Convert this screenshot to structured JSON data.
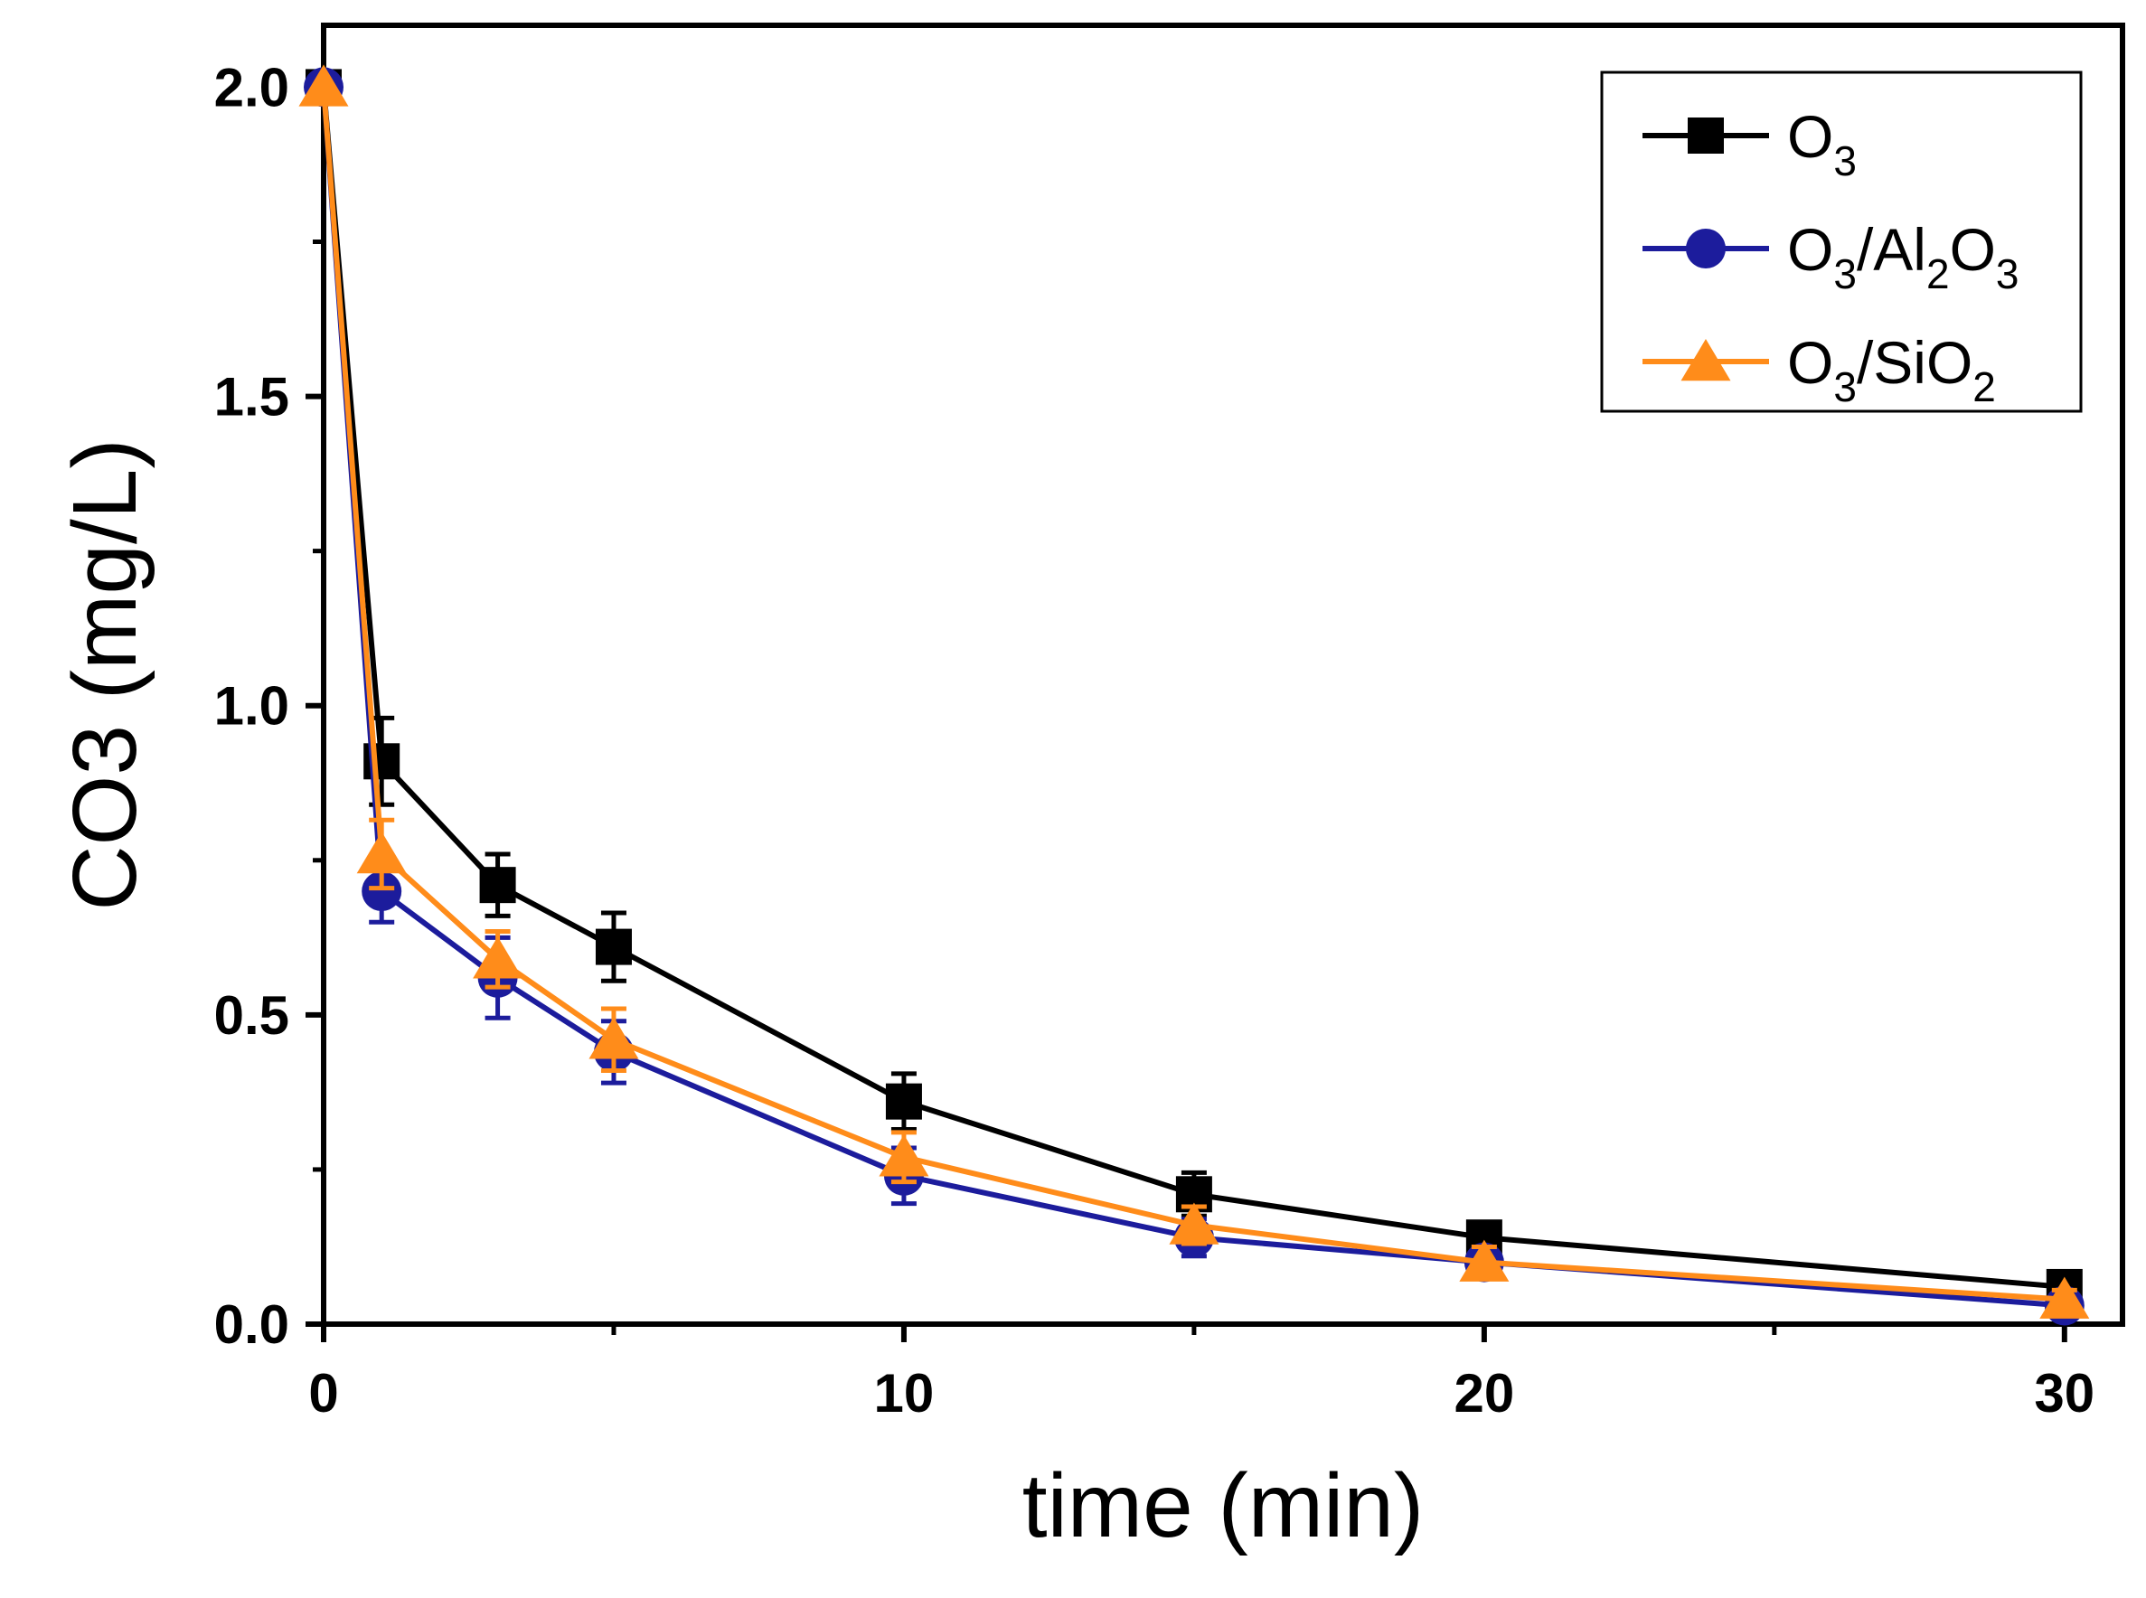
{
  "chart_data": {
    "type": "line",
    "title": "",
    "xlabel": "time (min)",
    "ylabel": "CO3 (mg/L)",
    "xlim": [
      0,
      31
    ],
    "ylim": [
      0,
      2.1
    ],
    "x_ticks": [
      0,
      10,
      20,
      30
    ],
    "x_tick_labels": [
      "0",
      "10",
      "20",
      "30"
    ],
    "x_minor_ticks": [
      5,
      15,
      25
    ],
    "y_ticks": [
      0.0,
      0.5,
      1.0,
      1.5,
      2.0
    ],
    "y_tick_labels": [
      "0.0",
      "0.5",
      "1.0",
      "1.5",
      "2.0"
    ],
    "y_minor_ticks": [
      0.25,
      0.75,
      1.25,
      1.75
    ],
    "grid": false,
    "legend_position": "top-right",
    "x": [
      0,
      1,
      3,
      5,
      10,
      15,
      20,
      30
    ],
    "series": [
      {
        "name": "O3",
        "legend_main": "O",
        "legend_parts": [
          {
            "t": "O"
          },
          {
            "t": "3",
            "sub": true
          }
        ],
        "color": "#000000",
        "marker": "square",
        "values": [
          2.0,
          0.91,
          0.71,
          0.61,
          0.36,
          0.21,
          0.14,
          0.06
        ],
        "errors": [
          0.0,
          0.07,
          0.05,
          0.055,
          0.045,
          0.035,
          0.02,
          0.015
        ]
      },
      {
        "name": "O3/Al2O3",
        "legend_parts": [
          {
            "t": "O"
          },
          {
            "t": "3",
            "sub": true
          },
          {
            "t": "/Al"
          },
          {
            "t": "2",
            "sub": true
          },
          {
            "t": "O"
          },
          {
            "t": "3",
            "sub": true
          }
        ],
        "color": "#1c1c9c",
        "marker": "circle",
        "values": [
          2.0,
          0.7,
          0.56,
          0.44,
          0.24,
          0.14,
          0.1,
          0.03
        ],
        "errors": [
          0.0,
          0.05,
          0.065,
          0.05,
          0.045,
          0.03,
          0.025,
          0.015
        ]
      },
      {
        "name": "O3/SiO2",
        "legend_parts": [
          {
            "t": "O"
          },
          {
            "t": "3",
            "sub": true
          },
          {
            "t": "/SiO"
          },
          {
            "t": "2",
            "sub": true
          }
        ],
        "color": "#ff8c1a",
        "marker": "triangle",
        "values": [
          2.0,
          0.76,
          0.59,
          0.46,
          0.27,
          0.16,
          0.1,
          0.04
        ],
        "errors": [
          0.0,
          0.055,
          0.045,
          0.05,
          0.04,
          0.03,
          0.025,
          0.015
        ]
      }
    ]
  }
}
